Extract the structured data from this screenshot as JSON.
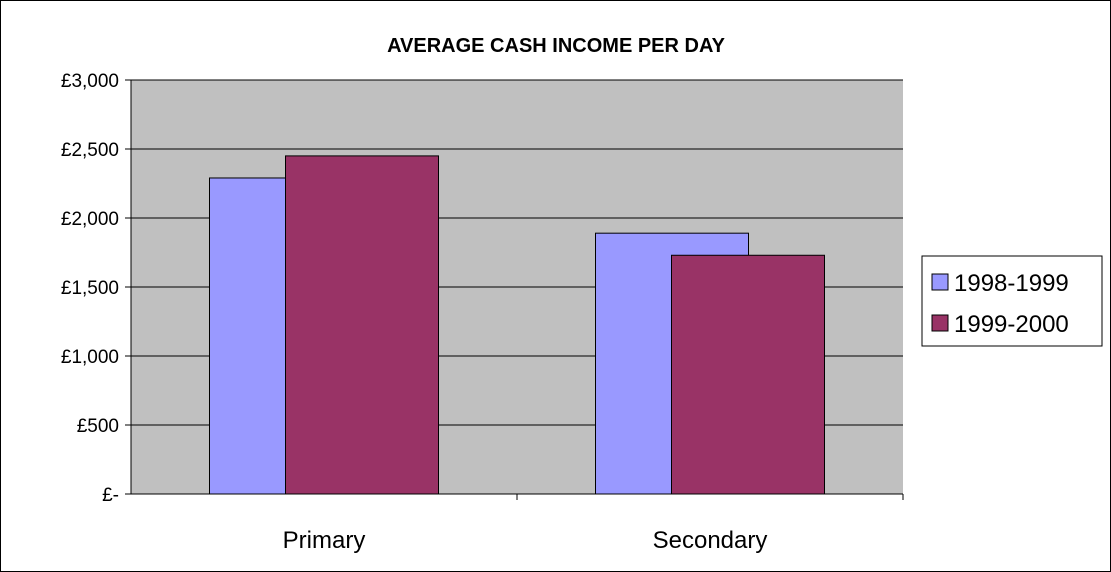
{
  "chart_data": {
    "type": "bar",
    "title": "AVERAGE CASH INCOME PER DAY",
    "xlabel": "",
    "ylabel": "",
    "categories": [
      "Primary",
      "Secondary"
    ],
    "series": [
      {
        "name": "1998-1999",
        "values": [
          2290,
          1890
        ],
        "color": "#9999ff"
      },
      {
        "name": "1999-2000",
        "values": [
          2450,
          1730
        ],
        "color": "#993366"
      }
    ],
    "ylim": [
      0,
      3000
    ],
    "yticks": [
      0,
      500,
      1000,
      1500,
      2000,
      2500,
      3000
    ],
    "ytick_labels": [
      "£-",
      "£500",
      "£1,000",
      "£1,500",
      "£2,000",
      "£2,500",
      "£3,000"
    ],
    "grid": true,
    "legend_position": "right",
    "plot_background": "#c0c0c0",
    "bars_overlap": true
  }
}
